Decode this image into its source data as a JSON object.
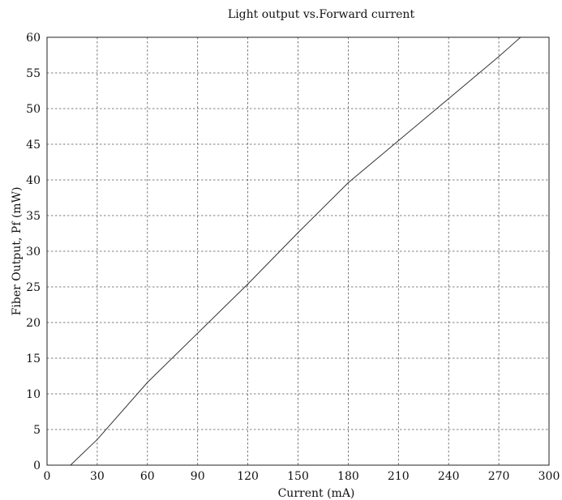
{
  "chart_data": {
    "type": "line",
    "title": "Light output vs.Forward current",
    "xlabel": "Current  (mA)",
    "ylabel": "Fiber Output,  Pf (mW)",
    "xlim": [
      0,
      300
    ],
    "ylim": [
      0,
      60
    ],
    "xticks": [
      0,
      30,
      60,
      90,
      120,
      150,
      180,
      210,
      240,
      270,
      300
    ],
    "yticks": [
      0,
      5,
      10,
      15,
      20,
      25,
      30,
      35,
      40,
      45,
      50,
      55,
      60
    ],
    "grid": true,
    "series": [
      {
        "color": "#333333",
        "x": [
          14,
          30,
          60,
          90,
          120,
          150,
          180,
          210,
          240,
          270,
          283
        ],
        "y": [
          0,
          3.6,
          11.6,
          18.5,
          25.4,
          32.6,
          39.6,
          45.5,
          51.4,
          57.3,
          60
        ]
      }
    ]
  }
}
